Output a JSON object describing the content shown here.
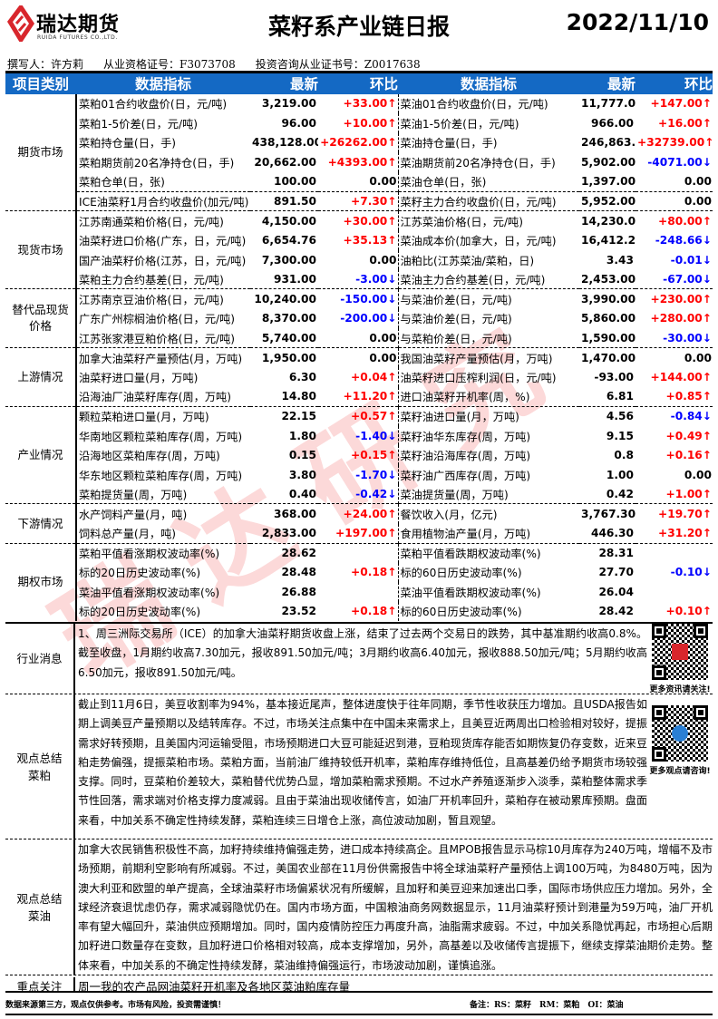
{
  "header": {
    "logo_cn": "瑞达期货",
    "logo_en": "RUIDA FUTURES CO.,LTD.",
    "title": "菜籽系产业链日报",
    "date": "2022/11/10",
    "author": "撰写人：许方莉",
    "qualification": "从业资格证号：F3073708",
    "consult_cert": "投资咨询从业证书号：Z0017638"
  },
  "watermark": "瑞达研究",
  "colors": {
    "header_bg": "#1469c4",
    "up": "#ff0000",
    "down": "#0000ff"
  },
  "table": {
    "columns": [
      "项目类别",
      "数据指标",
      "最新",
      "环比",
      "数据指标",
      "最新",
      "环比"
    ],
    "groups": [
      {
        "category": "期货市场",
        "rows": [
          {
            "left": {
              "name": "菜粕01合约收盘价(日，元/吨)",
              "latest": "3,219.00",
              "change": "+33.00↑"
            },
            "right": {
              "name": "菜油01合约收盘价(日，元/吨)",
              "latest": "11,777.00",
              "change": "+147.00↑"
            }
          },
          {
            "left": {
              "name": "菜粕1-5价差(日，元/吨)",
              "latest": "96.00",
              "change": "+10.00↑"
            },
            "right": {
              "name": "菜油1-5价差(日，元/吨)",
              "latest": "966.00",
              "change": "+16.00↑"
            }
          },
          {
            "left": {
              "name": "菜粕持仓量(日，手)",
              "latest": "438,128.00",
              "change": "+26262.00↑"
            },
            "right": {
              "name": "菜油持仓量(日，手)",
              "latest": "246,863.00",
              "change": "+32739.00↑"
            }
          },
          {
            "left": {
              "name": "菜粕期货前20名净持仓(日，手)",
              "latest": "20,662.00",
              "change": "+4393.00↑"
            },
            "right": {
              "name": "菜油期货前20名净持仓(日，手)",
              "latest": "5,902.00",
              "change": "-4071.00↓"
            }
          },
          {
            "left": {
              "name": "菜粕仓单(日，张)",
              "latest": "100.00",
              "change": "0.00"
            },
            "right": {
              "name": "菜油仓单(日，张)",
              "latest": "1,397.00",
              "change": "0.00"
            }
          },
          {
            "left": {
              "name": "ICE油菜籽1月合约收盘价(加元/吨)",
              "latest": "891.50",
              "change": "+7.30↑"
            },
            "right": {
              "name": "菜籽主力合约收盘价(日，元/吨)",
              "latest": "5,952.00",
              "change": "0.00"
            }
          }
        ]
      },
      {
        "category": "现货市场",
        "rows": [
          {
            "left": {
              "name": "江苏南通菜粕价格(日，元/吨)",
              "latest": "4,150.00",
              "change": "+30.00↑"
            },
            "right": {
              "name": "江苏菜油价格(日，元/吨)",
              "latest": "14,230.00",
              "change": "+80.00↑"
            }
          },
          {
            "left": {
              "name": "油菜籽进口价格(广东，日，元/吨)",
              "latest": "6,654.76",
              "change": "+35.13↑"
            },
            "right": {
              "name": "菜油成本价(加拿大，日，元/吨)",
              "latest": "16,412.25",
              "change": "-248.66↓"
            }
          },
          {
            "left": {
              "name": "国产油菜籽价格(江苏，日，元/吨)",
              "latest": "7,300.00",
              "change": "0.00"
            },
            "right": {
              "name": "油粕比(江苏菜油/菜粕，日)",
              "latest": "3.43",
              "change": "-0.01↓"
            }
          },
          {
            "left": {
              "name": "菜粕主力合约基差(日，元/吨)",
              "latest": "931.00",
              "change": "-3.00↓"
            },
            "right": {
              "name": "菜油主力合约基差(日，元/吨)",
              "latest": "2,453.00",
              "change": "-67.00↓"
            }
          }
        ]
      },
      {
        "category": "替代品现货价格",
        "rows": [
          {
            "left": {
              "name": "江苏南京豆油价格(日，元/吨)",
              "latest": "10,240.00",
              "change": "-150.00↓"
            },
            "right": {
              "name": "与菜油价差(日，元/吨)",
              "latest": "3,990.00",
              "change": "+230.00↑"
            }
          },
          {
            "left": {
              "name": "广东广州棕榈油价格(日，元/吨)",
              "latest": "8,370.00",
              "change": "-200.00↓"
            },
            "right": {
              "name": "与菜油价差(日，元/吨)",
              "latest": "5,860.00",
              "change": "+280.00↑"
            }
          },
          {
            "left": {
              "name": "江苏张家港豆粕价格(日，元/吨)",
              "latest": "5,740.00",
              "change": "0.00"
            },
            "right": {
              "name": "与菜粕价差(日，元/吨)",
              "latest": "1,590.00",
              "change": "-30.00↓"
            }
          }
        ]
      },
      {
        "category": "上游情况",
        "rows": [
          {
            "left": {
              "name": "加拿大油菜籽产量预估(月，万吨)",
              "latest": "1,950.00",
              "change": "0.00"
            },
            "right": {
              "name": "我国油菜籽产量预估(月，万吨)",
              "latest": "1,470.00",
              "change": "0.00"
            }
          },
          {
            "left": {
              "name": "油菜籽进口量(月，万吨)",
              "latest": "6.30",
              "change": "+0.04↑"
            },
            "right": {
              "name": "油菜籽进口压榨利润(日，元/吨)",
              "latest": "-93.00",
              "change": "+144.00↑"
            }
          },
          {
            "left": {
              "name": "沿海油厂油菜籽库存(周，万吨)",
              "latest": "14.80",
              "change": "+11.20↑"
            },
            "right": {
              "name": "进口油菜籽开机率(周，%)",
              "latest": "6.81",
              "change": "+0.85↑"
            }
          }
        ]
      },
      {
        "category": "产业情况",
        "rows": [
          {
            "left": {
              "name": "颗粒菜粕进口量(月，万吨)",
              "latest": "22.15",
              "change": "+0.57↑"
            },
            "right": {
              "name": "菜籽油进口量(月，万吨)",
              "latest": "4.56",
              "change": "-0.84↓"
            }
          },
          {
            "left": {
              "name": "华南地区颗粒菜粕库存(周，万吨)",
              "latest": "1.80",
              "change": "-1.40↓"
            },
            "right": {
              "name": "菜籽油华东库存(周，万吨)",
              "latest": "9.15",
              "change": "+0.49↑"
            }
          },
          {
            "left": {
              "name": "沿海地区菜粕库存(周，万吨)",
              "latest": "0.15",
              "change": "+0.15↑"
            },
            "right": {
              "name": "菜籽油沿海库存(周，万吨)",
              "latest": "0.8",
              "change": "+0.16↑"
            }
          },
          {
            "left": {
              "name": "华东地区颗粒菜粕库存(周，万吨)",
              "latest": "3.80",
              "change": "-1.70↓"
            },
            "right": {
              "name": "菜籽油广西库存(周，万吨)",
              "latest": "1.00",
              "change": "0.00"
            }
          },
          {
            "left": {
              "name": "菜粕提货量(周，万吨)",
              "latest": "0.40",
              "change": "-0.42↓"
            },
            "right": {
              "name": "菜油提货量(周，万吨)",
              "latest": "0.42",
              "change": "+1.00↑"
            }
          }
        ]
      },
      {
        "category": "下游情况",
        "rows": [
          {
            "left": {
              "name": "水产饲料产量(月，吨)",
              "latest": "368.00",
              "change": "+24.00↑"
            },
            "right": {
              "name": "餐饮收入(月，亿元)",
              "latest": "3,767.30",
              "change": "+19.70↑"
            }
          },
          {
            "left": {
              "name": "饲料总产量(月，吨)",
              "latest": "2,833.00",
              "change": "+197.00↑"
            },
            "right": {
              "name": "食用植物油产量(月，万吨)",
              "latest": "446.30",
              "change": "+31.20↑"
            }
          }
        ]
      },
      {
        "category": "期权市场",
        "rows": [
          {
            "left": {
              "name": "菜粕平值看涨期权波动率(%)",
              "latest": "28.62",
              "change": ""
            },
            "right": {
              "name": "菜粕平值看跌期权波动率(%)",
              "latest": "28.31",
              "change": ""
            }
          },
          {
            "left": {
              "name": "标的20日历史波动率(%)",
              "latest": "28.48",
              "change": "+0.18↑"
            },
            "right": {
              "name": "标的60日历史波动率(%)",
              "latest": "27.70",
              "change": "-0.10↓"
            }
          },
          {
            "left": {
              "name": "菜油平值看涨期权波动率(%)",
              "latest": "26.88",
              "change": ""
            },
            "right": {
              "name": "菜油平值看跌期权波动率(%)",
              "latest": "26.04",
              "change": ""
            }
          },
          {
            "left": {
              "name": "标的20日历史波动率(%)",
              "latest": "23.52",
              "change": "+0.18↑"
            },
            "right": {
              "name": "标的60日历史波动率(%)",
              "latest": "28.42",
              "change": "+0.10↑"
            }
          }
        ]
      }
    ]
  },
  "sections": {
    "news": {
      "label": "行业消息",
      "text": "1、周三洲际交易所（ICE）的加拿大油菜籽期货收盘上涨，结束了过去两个交易日的跌势，其中基准期约收高0.8%。截至收盘，1月期约收高7.30加元，报收891.50加元/吨；3月期约收高6.40加元，报收888.50加元/吨；5月期约收高6.50加元，报收891.50加元/吨。"
    },
    "meal": {
      "label": "观点总结菜粕",
      "text": "截止到11月6日，美豆收割率为94%，基本接近尾声，整体进度快于往年同期，季节性收获压力增加。且USDA报告如期上调美豆产量预期以及结转库存。不过，市场关注点集中在中国未来需求上，且美豆近两周出口检验相对较好，提振需求好转预期，且美国内河运输受阻，市场预期进口大豆可能延迟到港，豆粕现货库存能否如期恢复仍存变数，近来豆粕走势偏强，提振菜粕市场。菜粕方面，当前油厂维持较低开机率，菜粕库存维持低位，且高基差仍给予期货市场较强支撑。同时，豆菜粕价差较大，菜粕替代优势凸显，增加菜粕需求预期。不过水产养殖逐渐步入淡季，菜粕整体需求季节性回落，需求端对价格支撑力度减弱。且由于菜油出现收储传言，如油厂开机率回升，菜粕存在被动累库预期。盘面来看，中加关系不确定性持续发酵，菜粕连续三日增仓上涨，高位波动加剧，暂且观望。"
    },
    "oil": {
      "label": "观点总结菜油",
      "text": "加拿大农民销售积极性不高，加籽持续维持偏强走势，进口成本持续高企。且MPOB报告显示马棕10月库存为240万吨，增幅不及市场预期，前期利空影响有所减弱。不过，美国农业部在11月份供需报告中将全球油菜籽产量预估上调100万吨，为8480万吨，因为澳大利亚和欧盟的单产提高，全球油菜籽市场偏紧状况有所缓解，且加籽和美豆迎来加速出口季，国际市场供应压力增加。另外，全球经济衰退忧虑仍存，需求减弱隐忧仍在。国内市场方面，中国粮油商务网数据显示，11月油菜籽预计到港量为59万吨，油厂开机率有望大幅回升，菜油供应预期增加。同时，国内疫情防控压力再度升高，油脂需求疲弱。不过，中加关系隐忧再起，市场担心后期加籽进口数量存在变数，且加籽进口价格相对较高，成本支撑增加，另外，高基差以及收储传言提振下，继续支撑菜油期价走势。整体来看，中加关系的不确定性持续发酵，菜油维持偏强运行，市场波动加剧，谨慎追涨。"
    },
    "focus": {
      "label": "重点关注",
      "text": "周一我的农产品网油菜籽开机率及各地区菜油粕库存量"
    }
  },
  "qr": [
    {
      "caption": "更多资讯请关注!",
      "icon": "qr-code-icon"
    },
    {
      "caption": "更多观点请咨询!",
      "icon": "qr-code-icon"
    }
  ],
  "footer": {
    "disclaimer": "数据来源第三方，观点仅供参考。市场有风险，投资需谨慎！",
    "note": "备注：RS：菜籽　RM：菜粕　OI：菜油"
  }
}
